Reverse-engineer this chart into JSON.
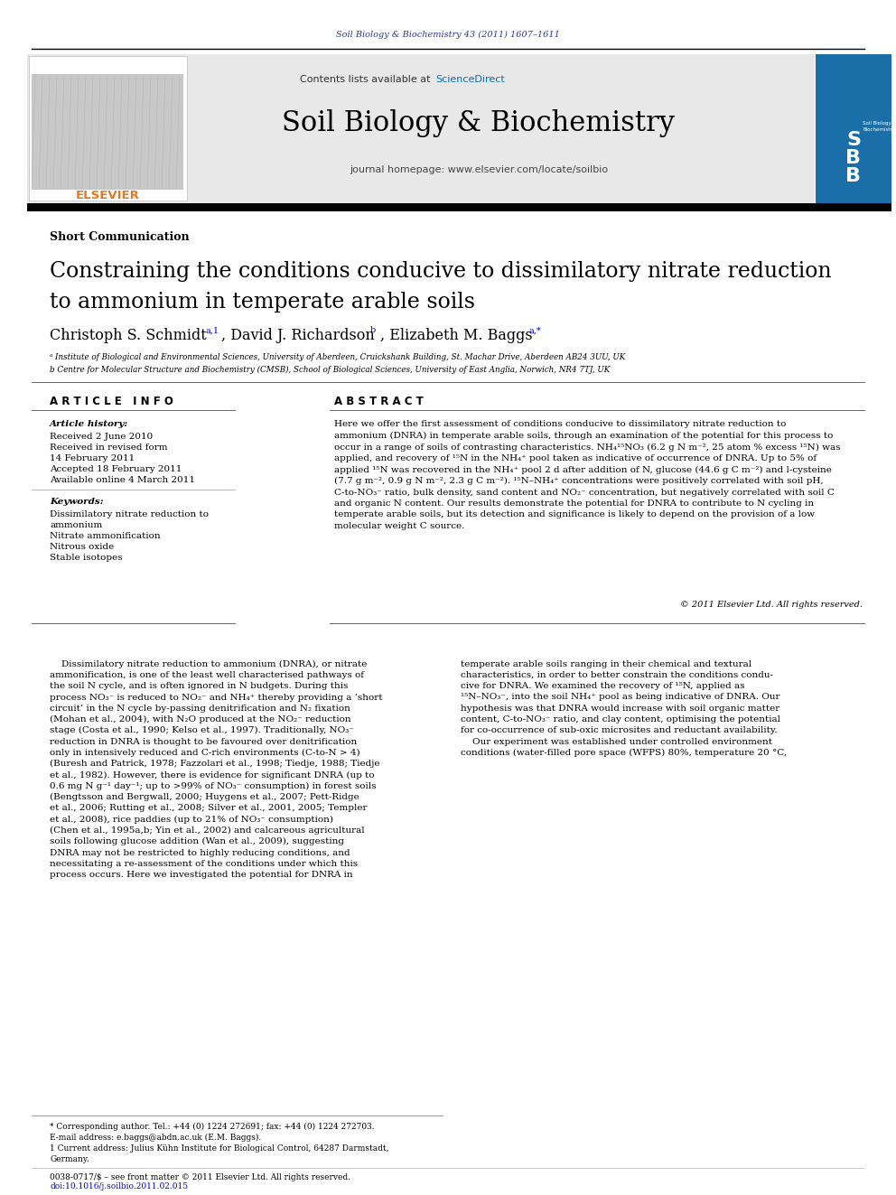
{
  "journal_ref": "Soil Biology & Biochemistry 43 (2011) 1607–1611",
  "journal_name": "Soil Biology & Biochemistry",
  "contents_line": "Contents lists available at ",
  "sciencedirect_text": "ScienceDirect",
  "journal_homepage": "journal homepage: www.elsevier.com/locate/soilbio",
  "section_label": "Short Communication",
  "title_line1": "Constraining the conditions conducive to dissimilatory nitrate reduction",
  "title_line2": "to ammonium in temperate arable soils",
  "author1": "Christoph S. Schmidt",
  "author1_sup": "a,1",
  "author2": ", David J. Richardson",
  "author2_sup": "b",
  "author3": ", Elizabeth M. Baggs",
  "author3_sup": "a,*",
  "affil_a": "ᵃ Institute of Biological and Environmental Sciences, University of Aberdeen, Cruickshank Building, St. Machar Drive, Aberdeen AB24 3UU, UK",
  "affil_b": "b Centre for Molecular Structure and Biochemistry (CMSB), School of Biological Sciences, University of East Anglia, Norwich, NR4 7TJ, UK",
  "article_info_header": "A R T I C L E   I N F O",
  "abstract_header": "A B S T R A C T",
  "article_history_label": "Article history:",
  "received": "Received 2 June 2010",
  "received_revised": "Received in revised form",
  "revised_date": "14 February 2011",
  "accepted": "Accepted 18 February 2011",
  "available": "Available online 4 March 2011",
  "keywords_label": "Keywords:",
  "keyword1": "Dissimilatory nitrate reduction to",
  "keyword1b": "ammonium",
  "keyword2": "Nitrate ammonification",
  "keyword3": "Nitrous oxide",
  "keyword4": "Stable isotopes",
  "abstract_lines": [
    "Here we offer the first assessment of conditions conducive to dissimilatory nitrate reduction to",
    "ammonium (DNRA) in temperate arable soils, through an examination of the potential for this process to",
    "occur in a range of soils of contrasting characteristics. NH₄¹⁵NO₃ (6.2 g N m⁻², 25 atom % excess ¹⁵N) was",
    "applied, and recovery of ¹⁵N in the NH₄⁺ pool taken as indicative of occurrence of DNRA. Up to 5% of",
    "applied ¹⁵N was recovered in the NH₄⁺ pool 2 d after addition of N, glucose (44.6 g C m⁻²) and l-cysteine",
    "(7.7 g m⁻², 0.9 g N m⁻², 2.3 g C m⁻²). ¹⁵N–NH₄⁺ concentrations were positively correlated with soil pH,",
    "C-to-NO₃⁻ ratio, bulk density, sand content and NO₂⁻ concentration, but negatively correlated with soil C",
    "and organic N content. Our results demonstrate the potential for DNRA to contribute to N cycling in",
    "temperate arable soils, but its detection and significance is likely to depend on the provision of a low",
    "molecular weight C source."
  ],
  "copyright": "© 2011 Elsevier Ltd. All rights reserved.",
  "body_col1_lines": [
    "    Dissimilatory nitrate reduction to ammonium (DNRA), or nitrate",
    "ammonification, is one of the least well characterised pathways of",
    "the soil N cycle, and is often ignored in N budgets. During this",
    "process NO₃⁻ is reduced to NO₂⁻ and NH₄⁺ thereby providing a ‘short",
    "circuit’ in the N cycle by-passing denitrification and N₂ fixation",
    "(Mohan et al., 2004), with N₂O produced at the NO₂⁻ reduction",
    "stage (Costa et al., 1990; Kelso et al., 1997). Traditionally, NO₃⁻",
    "reduction in DNRA is thought to be favoured over denitrification",
    "only in intensively reduced and C-rich environments (C-to-N > 4)",
    "(Buresh and Patrick, 1978; Fazzolari et al., 1998; Tiedje, 1988; Tiedje",
    "et al., 1982). However, there is evidence for significant DNRA (up to",
    "0.6 mg N g⁻¹ day⁻¹; up to >99% of NO₃⁻ consumption) in forest soils",
    "(Bengtsson and Bergwall, 2000; Huygens et al., 2007; Pett-Ridge",
    "et al., 2006; Rutting et al., 2008; Silver et al., 2001, 2005; Templer",
    "et al., 2008), rice paddies (up to 21% of NO₃⁻ consumption)",
    "(Chen et al., 1995a,b; Yin et al., 2002) and calcareous agricultural",
    "soils following glucose addition (Wan et al., 2009), suggesting",
    "DNRA may not be restricted to highly reducing conditions, and",
    "necessitating a re-assessment of the conditions under which this",
    "process occurs. Here we investigated the potential for DNRA in"
  ],
  "body_col2_lines": [
    "temperate arable soils ranging in their chemical and textural",
    "characteristics, in order to better constrain the conditions condu-",
    "cive for DNRA. We examined the recovery of ¹⁵N, applied as",
    "¹⁵N–NO₃⁻, into the soil NH₄⁺ pool as being indicative of DNRA. Our",
    "hypothesis was that DNRA would increase with soil organic matter",
    "content, C-to-NO₃⁻ ratio, and clay content, optimising the potential",
    "for co-occurrence of sub-oxic microsites and reductant availability.",
    "    Our experiment was established under controlled environment",
    "conditions (water-filled pore space (WFPS) 80%, temperature 20 °C,"
  ],
  "footer_note1": "* Corresponding author. Tel.: +44 (0) 1224 272691; fax: +44 (0) 1224 272703.",
  "footer_note2": "E-mail address: e.baggs@abdn.ac.uk (E.M. Baggs).",
  "footer_note3": "1 Current address: Julius Kühn Institute for Biological Control, 64287 Darmstadt,",
  "footer_note3b": "Germany.",
  "footer_issn": "0038-0717/$ – see front matter © 2011 Elsevier Ltd. All rights reserved.",
  "footer_doi": "doi:10.1016/j.soilbio.2011.02.015",
  "header_color": "#2b3990",
  "elsevier_color": "#e87722",
  "sciencedirect_color": "#0070c0",
  "link_color": "#0000cc",
  "bg_header_color": "#e8e8e8",
  "cover_blue": "#1a6fa8"
}
